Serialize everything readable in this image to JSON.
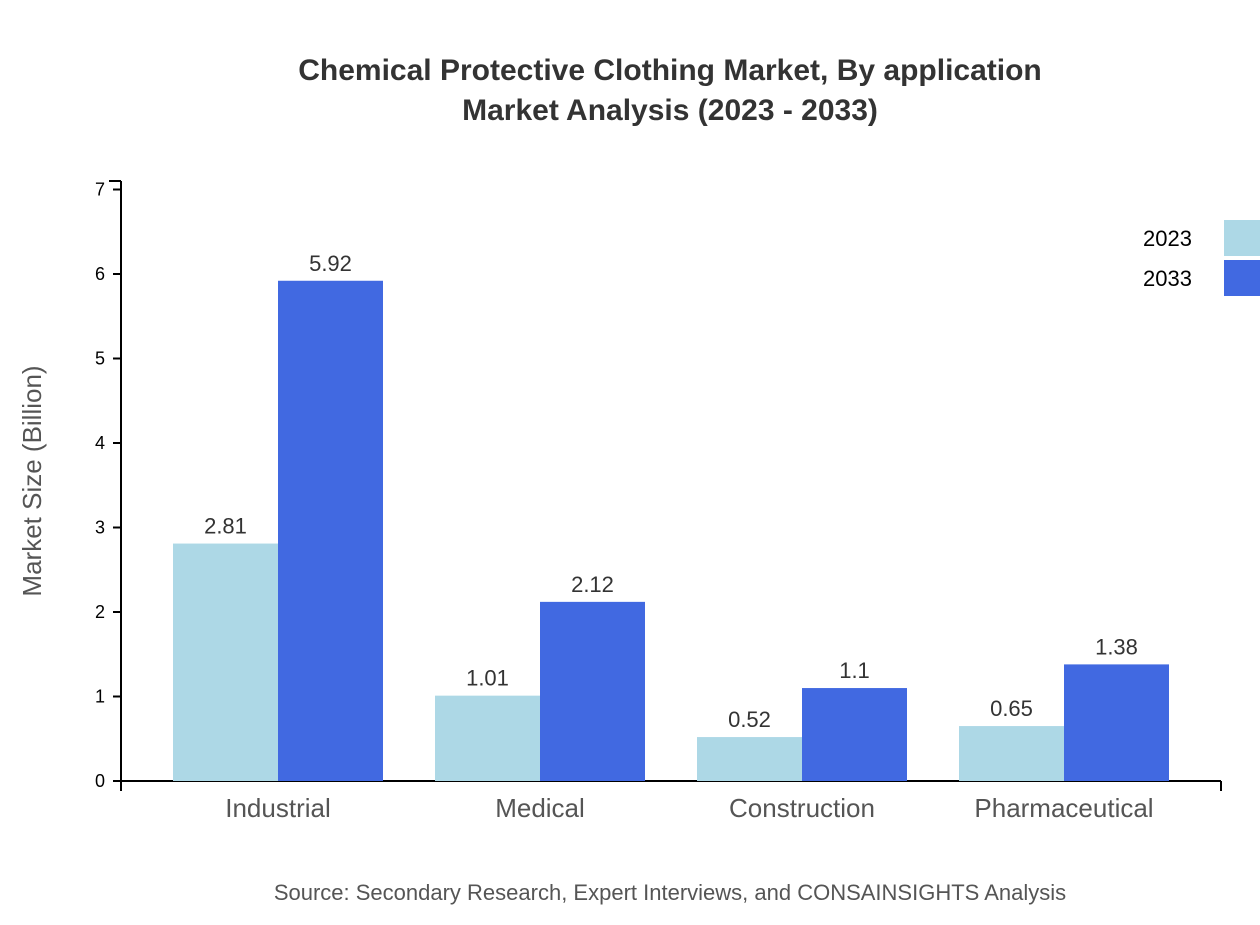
{
  "chart_data": {
    "type": "bar",
    "title": "Chemical Protective Clothing Market, By application",
    "subtitle": "Market Analysis (2023 - 2033)",
    "xlabel": "",
    "ylabel": "Market Size (Billion)",
    "ylim": [
      0,
      7
    ],
    "yticks": [
      "0",
      "1",
      "2",
      "3",
      "4",
      "5",
      "6",
      "7"
    ],
    "categories": [
      "Industrial",
      "Medical",
      "Construction",
      "Pharmaceutical"
    ],
    "series": [
      {
        "name": "2023",
        "color": "#add8e6",
        "values": [
          2.81,
          1.01,
          0.52,
          0.65
        ],
        "labels": [
          "2.81",
          "1.01",
          "0.52",
          "0.65"
        ]
      },
      {
        "name": "2033",
        "color": "#4169e1",
        "values": [
          5.92,
          2.12,
          1.1,
          1.38
        ],
        "labels": [
          "5.92",
          "2.12",
          "1.1",
          "1.38"
        ]
      }
    ],
    "legend_position": "top-right",
    "grid": false,
    "source": "Source: Secondary Research, Expert Interviews, and CONSAINSIGHTS Analysis"
  }
}
